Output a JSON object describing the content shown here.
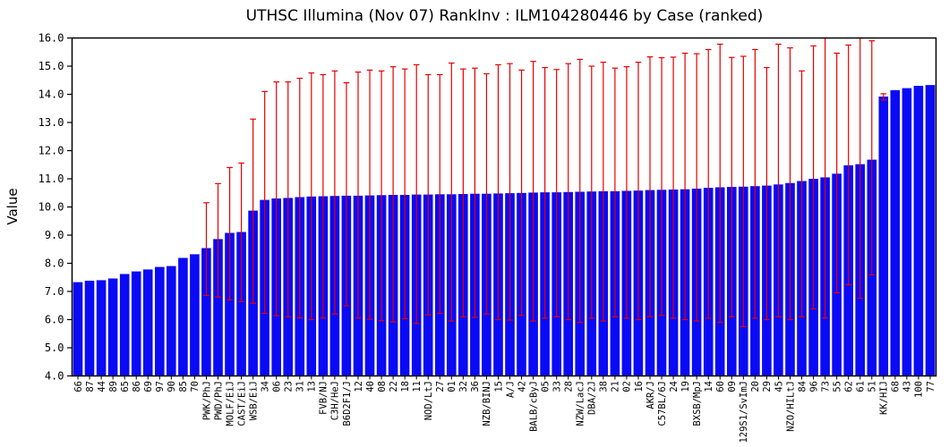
{
  "chart_data": {
    "type": "bar",
    "title": "UTHSC Illumina (Nov 07) RankInv : ILM104280446 by Case (ranked)",
    "ylabel": "Value",
    "xlabel": "",
    "ylim": [
      4.0,
      16.0
    ],
    "ytick_labels": [
      "4.0",
      "5.0",
      "6.0",
      "7.0",
      "8.0",
      "9.0",
      "10.0",
      "11.0",
      "12.0",
      "13.0",
      "14.0",
      "15.0",
      "16.0"
    ],
    "grid": false,
    "legend": "none",
    "bar_color": "#0a0af5",
    "error_bar_color": "#e60000",
    "axis_color": "#000000",
    "categories": [
      "66",
      "87",
      "44",
      "89",
      "65",
      "86",
      "69",
      "97",
      "90",
      "85",
      "70",
      "PWK/PhJ",
      "PWD/PhJ",
      "MOLF/EiJ",
      "CAST/EiJ",
      "WSB/EiJ",
      "34",
      "06",
      "23",
      "31",
      "13",
      "FVB/NJ",
      "C3H/HeJ",
      "B6D2F1/J",
      "12",
      "40",
      "08",
      "22",
      "18",
      "11",
      "NOD/LtJ",
      "27",
      "01",
      "32",
      "36",
      "NZB/BINJ",
      "15",
      "A/J",
      "42",
      "BALB/cByJ",
      "05",
      "33",
      "28",
      "NZW/LacJ",
      "DBA/2J",
      "38",
      "21",
      "02",
      "16",
      "AKR/J",
      "C57BL/6J",
      "24",
      "19",
      "BXSB/MpJ",
      "14",
      "60",
      "09",
      "129S1/SvImJ",
      "20",
      "29",
      "45",
      "NZO/HILtJ",
      "84",
      "96",
      "73",
      "55",
      "62",
      "61",
      "51",
      "KK/HIJ",
      "68",
      "43",
      "100",
      "77"
    ],
    "values": [
      7.33,
      7.38,
      7.4,
      7.46,
      7.62,
      7.71,
      7.78,
      7.87,
      7.9,
      8.19,
      8.32,
      8.54,
      8.86,
      9.08,
      9.11,
      9.87,
      10.25,
      10.3,
      10.32,
      10.35,
      10.37,
      10.38,
      10.39,
      10.4,
      10.4,
      10.41,
      10.42,
      10.43,
      10.43,
      10.44,
      10.44,
      10.45,
      10.45,
      10.46,
      10.47,
      10.47,
      10.48,
      10.49,
      10.5,
      10.51,
      10.52,
      10.52,
      10.53,
      10.54,
      10.55,
      10.56,
      10.56,
      10.57,
      10.58,
      10.6,
      10.61,
      10.62,
      10.63,
      10.65,
      10.68,
      10.7,
      10.71,
      10.72,
      10.74,
      10.76,
      10.8,
      10.85,
      10.92,
      11.0,
      11.05,
      11.18,
      11.48,
      11.52,
      11.68,
      13.92,
      14.15,
      14.22,
      14.3,
      14.33
    ],
    "error_high": [
      null,
      null,
      null,
      null,
      null,
      null,
      null,
      null,
      null,
      null,
      null,
      10.15,
      10.83,
      11.4,
      11.56,
      13.12,
      14.1,
      14.44,
      14.44,
      14.57,
      14.76,
      14.7,
      14.83,
      14.41,
      14.79,
      14.86,
      14.83,
      14.98,
      14.9,
      15.05,
      14.7,
      14.7,
      15.11,
      14.9,
      14.93,
      14.73,
      15.05,
      15.09,
      14.86,
      15.17,
      14.95,
      14.88,
      15.09,
      15.24,
      15.0,
      15.14,
      14.93,
      14.98,
      15.14,
      15.33,
      15.3,
      15.32,
      15.46,
      15.44,
      15.59,
      15.78,
      15.31,
      15.35,
      15.59,
      14.95,
      15.78,
      15.65,
      14.83,
      15.72,
      16.0,
      15.46,
      15.75,
      16.0,
      15.9,
      14.02,
      null,
      null,
      null,
      null
    ],
    "error_low": [
      null,
      null,
      null,
      null,
      null,
      null,
      null,
      null,
      null,
      null,
      null,
      6.86,
      6.8,
      6.7,
      6.64,
      6.58,
      6.22,
      6.14,
      6.1,
      6.06,
      6.0,
      6.06,
      6.2,
      6.49,
      6.06,
      6.01,
      5.96,
      5.92,
      6.03,
      5.86,
      6.17,
      6.22,
      5.95,
      6.1,
      6.08,
      6.2,
      6.0,
      5.98,
      6.15,
      5.95,
      6.05,
      6.1,
      6.0,
      5.9,
      6.05,
      5.95,
      6.1,
      6.05,
      6.0,
      6.1,
      6.15,
      6.05,
      6.0,
      5.95,
      6.05,
      5.9,
      6.1,
      5.75,
      6.05,
      6.0,
      6.1,
      6.0,
      6.1,
      6.38,
      6.06,
      6.95,
      7.24,
      6.76,
      7.59,
      13.8,
      null,
      null,
      null,
      null
    ]
  }
}
